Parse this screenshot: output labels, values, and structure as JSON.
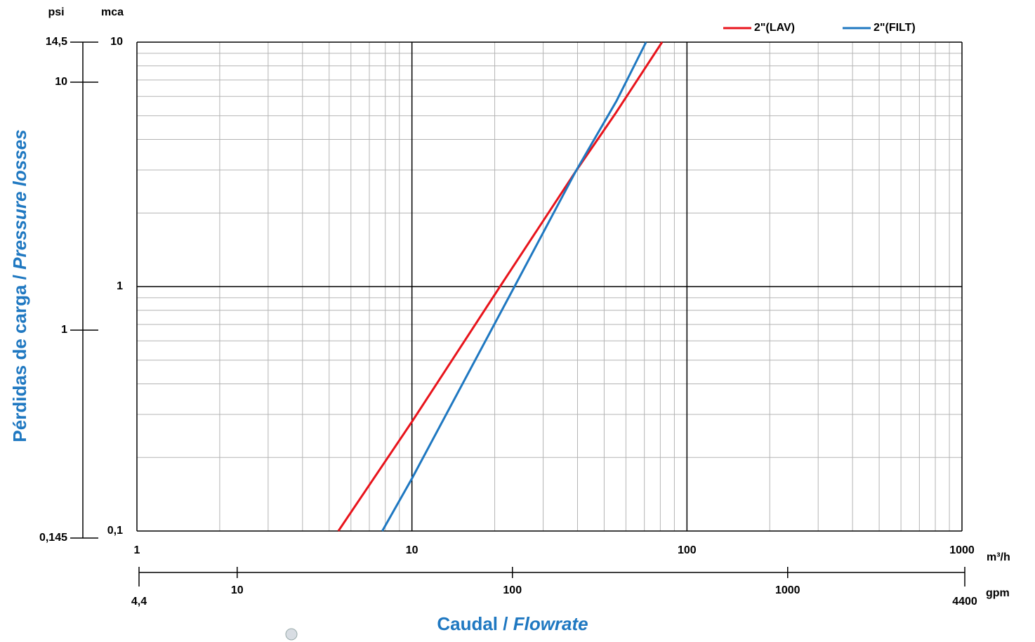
{
  "chart_data": {
    "type": "line",
    "x_label_es": "Caudal /",
    "x_label_en": "Flowrate",
    "y_label_es": "Pérdidas de carga /",
    "y_label_en": "Pressure losses",
    "x_unit": "m³/h",
    "y_unit": "mca",
    "xlim": [
      1,
      1000
    ],
    "ylim": [
      0.1,
      10
    ],
    "xticks": [
      1,
      10,
      100,
      1000
    ],
    "yticks": [
      {
        "value": 0.1,
        "label": "0,1"
      },
      1,
      10
    ],
    "log_x": true,
    "log_y": true,
    "grid": true,
    "legend": "top-right",
    "x2_unit": "gpm",
    "x2lim": [
      4.4,
      4400
    ],
    "x2ticks": [
      {
        "value": 4.4,
        "label": "4,4"
      },
      10,
      100,
      1000,
      4400
    ],
    "y2_unit": "psi",
    "y2lim": [
      0.145,
      14.5
    ],
    "y2ticks": [
      {
        "value": 0.145,
        "label": "0,145"
      },
      1,
      10,
      {
        "value": 14.5,
        "label": "14,5"
      }
    ],
    "series": [
      {
        "name": "2\"(LAV)",
        "color": "#e8141c",
        "x": [
          5.4,
          10,
          20.9,
          39.4,
          55.1,
          81.2
        ],
        "values": [
          0.1,
          0.28,
          1,
          2.96,
          5.13,
          10
        ]
      },
      {
        "name": "2\"(FILT)",
        "color": "#1f78c1",
        "x": [
          7.8,
          10,
          23.6,
          39.4,
          55.4,
          71.0
        ],
        "values": [
          0.1,
          0.164,
          1,
          2.96,
          5.74,
          10
        ]
      }
    ]
  }
}
